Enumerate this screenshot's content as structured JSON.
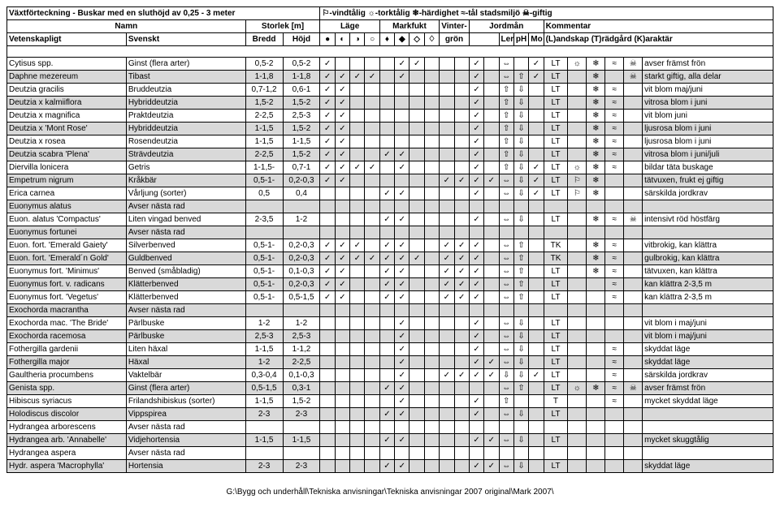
{
  "title_left": "Växtförteckning - Buskar med en sluthöjd av 0,25 - 3 meter",
  "legend": "⚐-vindtålig ☼-torktålig ❄-härdighet ≈-tål stadsmiljö ☠-giftig",
  "hdr2": {
    "namn": "Namn",
    "storlek": "Storlek [m]",
    "lage": "Läge",
    "markfukt": "Markfukt",
    "vinter": "Vinter-",
    "jordman": "Jordmån",
    "kommentar": "Kommentar"
  },
  "hdr3": {
    "sci": "Vetenskapligt",
    "sv": "Svenskt",
    "bredd": "Bredd",
    "hojd": "Höjd",
    "gron": "grön",
    "ler": "Ler",
    "ph": "pH",
    "mo": "Mo",
    "rest": "(L)andskap  (T)rädgård  (K)araktär"
  },
  "lage_icons": [
    "●",
    "◐",
    "◑",
    "○"
  ],
  "mark_icons": [
    "♦",
    "◆",
    "◇",
    "♢"
  ],
  "check": "✓",
  "up": "⇧",
  "down": "⇩",
  "lr": "⇔",
  "sun": "☼",
  "snow": "❄",
  "wave": "≈",
  "skull": "☠",
  "flag": "⚐",
  "rows": [
    {
      "sci": "Cytisus spp.",
      "sv": "Ginst (flera arter)",
      "b": "0,5-2",
      "h": "0,5-2",
      "lage": [
        1,
        0,
        0,
        0
      ],
      "mark": [
        0,
        1,
        1,
        0
      ],
      "vint": [
        0,
        0
      ],
      "jord": [
        1,
        0
      ],
      "ler": "⇔",
      "ph": "",
      "mo": "✓",
      "lt": "LT",
      "icons": [
        "☼",
        "❄",
        "≈",
        "☠"
      ],
      "txt": "avser främst frön"
    },
    {
      "sci": "Daphne mezereum",
      "sv": "Tibast",
      "b": "1-1,8",
      "h": "1-1,8",
      "lage": [
        1,
        1,
        1,
        1
      ],
      "mark": [
        0,
        1,
        0,
        0
      ],
      "vint": [
        0,
        0
      ],
      "jord": [
        1,
        0
      ],
      "ler": "⇔",
      "ph": "⇧",
      "mo": "✓",
      "lt": "LT",
      "icons": [
        "",
        "❄",
        "",
        "☠"
      ],
      "txt": "starkt giftig, alla delar",
      "gray": true
    },
    {
      "sci": "Deutzia gracilis",
      "sv": "Bruddeutzia",
      "b": "0,7-1,2",
      "h": "0,6-1",
      "lage": [
        1,
        1,
        0,
        0
      ],
      "mark": [
        0,
        0,
        0,
        0
      ],
      "vint": [
        0,
        0
      ],
      "jord": [
        1,
        0
      ],
      "ler": "⇧",
      "ph": "⇩",
      "mo": "",
      "lt": "LT",
      "icons": [
        "",
        "❄",
        "≈",
        ""
      ],
      "txt": "vit blom maj/juni"
    },
    {
      "sci": "Deutzia x kalmiiflora",
      "sv": "Hybriddeutzia",
      "b": "1,5-2",
      "h": "1,5-2",
      "lage": [
        1,
        1,
        0,
        0
      ],
      "mark": [
        0,
        0,
        0,
        0
      ],
      "vint": [
        0,
        0
      ],
      "jord": [
        1,
        0
      ],
      "ler": "⇧",
      "ph": "⇩",
      "mo": "",
      "lt": "LT",
      "icons": [
        "",
        "❄",
        "≈",
        ""
      ],
      "txt": "vitrosa blom i juni",
      "gray": true
    },
    {
      "sci": "Deutzia x magnifica",
      "sv": "Praktdeutzia",
      "b": "2-2,5",
      "h": "2,5-3",
      "lage": [
        1,
        1,
        0,
        0
      ],
      "mark": [
        0,
        0,
        0,
        0
      ],
      "vint": [
        0,
        0
      ],
      "jord": [
        1,
        0
      ],
      "ler": "⇧",
      "ph": "⇩",
      "mo": "",
      "lt": "LT",
      "icons": [
        "",
        "❄",
        "≈",
        ""
      ],
      "txt": "vit blom juni"
    },
    {
      "sci": "Deutzia x 'Mont Rose'",
      "sv": "Hybriddeutzia",
      "b": "1-1,5",
      "h": "1,5-2",
      "lage": [
        1,
        1,
        0,
        0
      ],
      "mark": [
        0,
        0,
        0,
        0
      ],
      "vint": [
        0,
        0
      ],
      "jord": [
        1,
        0
      ],
      "ler": "⇧",
      "ph": "⇩",
      "mo": "",
      "lt": "LT",
      "icons": [
        "",
        "❄",
        "≈",
        ""
      ],
      "txt": "ljusrosa blom i juni",
      "gray": true
    },
    {
      "sci": "Deutzia x rosea",
      "sv": "Rosendeutzia",
      "b": "1-1,5",
      "h": "1-1,5",
      "lage": [
        1,
        1,
        0,
        0
      ],
      "mark": [
        0,
        0,
        0,
        0
      ],
      "vint": [
        0,
        0
      ],
      "jord": [
        1,
        0
      ],
      "ler": "⇧",
      "ph": "⇩",
      "mo": "",
      "lt": "LT",
      "icons": [
        "",
        "❄",
        "≈",
        ""
      ],
      "txt": "ljusrosa blom i juni"
    },
    {
      "sci": "Deutzia scabra 'Plena'",
      "sv": "Strävdeutzia",
      "b": "2-2,5",
      "h": "1,5-2",
      "lage": [
        1,
        1,
        0,
        0
      ],
      "mark": [
        1,
        1,
        0,
        0
      ],
      "vint": [
        0,
        0
      ],
      "jord": [
        1,
        0
      ],
      "ler": "⇧",
      "ph": "⇩",
      "mo": "",
      "lt": "LT",
      "icons": [
        "",
        "❄",
        "≈",
        ""
      ],
      "txt": "vitrosa blom i juni/juli",
      "gray": true
    },
    {
      "sci": "Diervilla lonicera",
      "sv": "Getris",
      "b": "1-1,5-",
      "h": "0,7-1",
      "lage": [
        1,
        1,
        1,
        1
      ],
      "mark": [
        0,
        1,
        0,
        0
      ],
      "vint": [
        0,
        0
      ],
      "jord": [
        1,
        0
      ],
      "ler": "⇧",
      "ph": "⇩",
      "mo": "✓",
      "lt": "LT",
      "icons": [
        "☼",
        "❄",
        "≈",
        ""
      ],
      "txt": "bildar täta buskage"
    },
    {
      "sci": "Empetrum nigrum",
      "sv": "Kråkbär",
      "b": "0,5-1-",
      "h": "0,2-0,3",
      "lage": [
        1,
        1,
        0,
        0
      ],
      "mark": [
        0,
        0,
        0,
        0
      ],
      "vint": [
        1,
        1
      ],
      "jord": [
        1,
        1
      ],
      "ler": "⇔",
      "ph": "⇩",
      "mo": "✓",
      "lt": "LT",
      "icons": [
        "⚐",
        "❄",
        "",
        ""
      ],
      "txt": "tätvuxen, frukt ej giftig",
      "gray": true
    },
    {
      "sci": "Erica carnea",
      "sv": "Vårljung (sorter)",
      "b": "0,5",
      "h": "0,4",
      "lage": [
        0,
        0,
        0,
        0
      ],
      "mark": [
        1,
        1,
        0,
        0
      ],
      "vint": [
        0,
        0
      ],
      "jord": [
        1,
        0
      ],
      "ler": "⇔",
      "ph": "⇩",
      "mo": "✓",
      "lt": "LT",
      "icons": [
        "⚐",
        "❄",
        "",
        ""
      ],
      "txt": "särskilda jordkrav"
    },
    {
      "sci": "Euonymus alatus",
      "sv": "Avser nästa rad",
      "b": "",
      "h": "",
      "lage": [
        0,
        0,
        0,
        0
      ],
      "mark": [
        0,
        0,
        0,
        0
      ],
      "vint": [
        0,
        0
      ],
      "jord": [
        0,
        0
      ],
      "ler": "",
      "ph": "",
      "mo": "",
      "lt": "",
      "icons": [
        "",
        "",
        "",
        ""
      ],
      "txt": "",
      "gray": true
    },
    {
      "sci": "Euon. alatus 'Compactus'",
      "sv": "Liten vingad benved",
      "b": "2-3,5",
      "h": "1-2",
      "lage": [
        0,
        0,
        0,
        0
      ],
      "mark": [
        1,
        1,
        0,
        0
      ],
      "vint": [
        0,
        0
      ],
      "jord": [
        1,
        0
      ],
      "ler": "⇔",
      "ph": "⇩",
      "mo": "",
      "lt": "LT",
      "icons": [
        "",
        "❄",
        "≈",
        "☠"
      ],
      "txt": "intensivt röd höstfärg"
    },
    {
      "sci": "Euonymus fortunei",
      "sv": "Avser nästa rad",
      "b": "",
      "h": "",
      "lage": [
        0,
        0,
        0,
        0
      ],
      "mark": [
        0,
        0,
        0,
        0
      ],
      "vint": [
        0,
        0
      ],
      "jord": [
        0,
        0
      ],
      "ler": "",
      "ph": "",
      "mo": "",
      "lt": "",
      "icons": [
        "",
        "",
        "",
        ""
      ],
      "txt": "",
      "gray": true
    },
    {
      "sci": "Euon. fort. 'Emerald Gaiety'",
      "sv": "Silverbenved",
      "b": "0,5-1-",
      "h": "0,2-0,3",
      "lage": [
        1,
        1,
        1,
        0
      ],
      "mark": [
        1,
        1,
        0,
        0
      ],
      "vint": [
        1,
        1
      ],
      "jord": [
        1,
        0
      ],
      "ler": "⇔",
      "ph": "⇧",
      "mo": "",
      "lt": "TK",
      "icons": [
        "",
        "❄",
        "≈",
        ""
      ],
      "txt": "vitbrokig, kan klättra"
    },
    {
      "sci": "Euon. fort. 'Emerald´n Gold'",
      "sv": "Guldbenved",
      "b": "0,5-1-",
      "h": "0,2-0,3",
      "lage": [
        1,
        1,
        1,
        1
      ],
      "mark": [
        1,
        1,
        1,
        0
      ],
      "vint": [
        1,
        1
      ],
      "jord": [
        1,
        0
      ],
      "ler": "⇔",
      "ph": "⇧",
      "mo": "",
      "lt": "TK",
      "icons": [
        "",
        "❄",
        "≈",
        ""
      ],
      "txt": "gulbrokig, kan klättra",
      "gray": true
    },
    {
      "sci": "Euonymus fort. 'Minimus'",
      "sv": "Benved (småbladig)",
      "b": "0,5-1-",
      "h": "0,1-0,3",
      "lage": [
        1,
        1,
        0,
        0
      ],
      "mark": [
        1,
        1,
        0,
        0
      ],
      "vint": [
        1,
        1
      ],
      "jord": [
        1,
        0
      ],
      "ler": "⇔",
      "ph": "⇧",
      "mo": "",
      "lt": "LT",
      "icons": [
        "",
        "❄",
        "≈",
        ""
      ],
      "txt": "tätvuxen, kan klättra"
    },
    {
      "sci": "Euonymus fort. v. radicans",
      "sv": "Klätterbenved",
      "b": "0,5-1-",
      "h": "0,2-0,3",
      "lage": [
        1,
        1,
        0,
        0
      ],
      "mark": [
        1,
        1,
        0,
        0
      ],
      "vint": [
        1,
        1
      ],
      "jord": [
        1,
        0
      ],
      "ler": "⇔",
      "ph": "⇧",
      "mo": "",
      "lt": "LT",
      "icons": [
        "",
        "",
        "≈",
        ""
      ],
      "txt": "kan klättra 2-3,5 m",
      "gray": true
    },
    {
      "sci": "Euonymus fort. 'Vegetus'",
      "sv": "Klätterbenved",
      "b": "0,5-1-",
      "h": "0,5-1,5",
      "lage": [
        1,
        1,
        0,
        0
      ],
      "mark": [
        1,
        1,
        0,
        0
      ],
      "vint": [
        1,
        1
      ],
      "jord": [
        1,
        0
      ],
      "ler": "⇔",
      "ph": "⇧",
      "mo": "",
      "lt": "LT",
      "icons": [
        "",
        "",
        "≈",
        ""
      ],
      "txt": "kan klättra 2-3,5 m"
    },
    {
      "sci": "Exochorda macrantha",
      "sv": "Avser nästa rad",
      "b": "",
      "h": "",
      "lage": [
        0,
        0,
        0,
        0
      ],
      "mark": [
        0,
        0,
        0,
        0
      ],
      "vint": [
        0,
        0
      ],
      "jord": [
        0,
        0
      ],
      "ler": "",
      "ph": "",
      "mo": "",
      "lt": "",
      "icons": [
        "",
        "",
        "",
        ""
      ],
      "txt": "",
      "gray": true
    },
    {
      "sci": "Exochorda mac. 'The Bride'",
      "sv": "Pärlbuske",
      "b": "1-2",
      "h": "1-2",
      "lage": [
        0,
        0,
        0,
        0
      ],
      "mark": [
        0,
        1,
        0,
        0
      ],
      "vint": [
        0,
        0
      ],
      "jord": [
        1,
        0
      ],
      "ler": "⇔",
      "ph": "⇩",
      "mo": "",
      "lt": "LT",
      "icons": [
        "",
        "",
        "",
        ""
      ],
      "txt": "vit blom i maj/juni"
    },
    {
      "sci": "Exochorda racemosa",
      "sv": "Pärlbuske",
      "b": "2,5-3",
      "h": "2,5-3",
      "lage": [
        0,
        0,
        0,
        0
      ],
      "mark": [
        0,
        1,
        0,
        0
      ],
      "vint": [
        0,
        0
      ],
      "jord": [
        1,
        0
      ],
      "ler": "⇔",
      "ph": "⇩",
      "mo": "",
      "lt": "LT",
      "icons": [
        "",
        "",
        "",
        ""
      ],
      "txt": "vit blom i maj/juni",
      "gray": true
    },
    {
      "sci": "Fothergilla gardenii",
      "sv": "Liten häxal",
      "b": "1-1,5",
      "h": "1-1,2",
      "lage": [
        0,
        0,
        0,
        0
      ],
      "mark": [
        0,
        1,
        0,
        0
      ],
      "vint": [
        0,
        0
      ],
      "jord": [
        1,
        0
      ],
      "ler": "⇔",
      "ph": "⇩",
      "mo": "",
      "lt": "LT",
      "icons": [
        "",
        "",
        "≈",
        ""
      ],
      "txt": "skyddat läge"
    },
    {
      "sci": "Fothergilla major",
      "sv": "Häxal",
      "b": "1-2",
      "h": "2-2,5",
      "lage": [
        0,
        0,
        0,
        0
      ],
      "mark": [
        0,
        1,
        0,
        0
      ],
      "vint": [
        0,
        0
      ],
      "jord": [
        1,
        1
      ],
      "ler": "⇔",
      "ph": "⇩",
      "mo": "",
      "lt": "LT",
      "icons": [
        "",
        "",
        "≈",
        ""
      ],
      "txt": "skyddat läge",
      "gray": true
    },
    {
      "sci": "Gaultheria procumbens",
      "sv": "Vaktelbär",
      "b": "0,3-0,4",
      "h": "0,1-0,3",
      "lage": [
        0,
        0,
        0,
        0
      ],
      "mark": [
        0,
        1,
        0,
        0
      ],
      "vint": [
        1,
        1
      ],
      "jord": [
        1,
        1
      ],
      "ler": "⇩",
      "ph": "⇩",
      "mo": "✓",
      "lt": "LT",
      "icons": [
        "",
        "",
        "≈",
        ""
      ],
      "txt": "särskilda jordkrav"
    },
    {
      "sci": "Genista spp.",
      "sv": "Ginst (flera arter)",
      "b": "0,5-1,5",
      "h": "0,3-1",
      "lage": [
        0,
        0,
        0,
        0
      ],
      "mark": [
        1,
        1,
        0,
        0
      ],
      "vint": [
        0,
        0
      ],
      "jord": [
        0,
        0
      ],
      "ler": "⇔",
      "ph": "⇧",
      "mo": "",
      "lt": "LT",
      "icons": [
        "☼",
        "❄",
        "≈",
        "☠"
      ],
      "txt": "avser främst frön",
      "gray": true
    },
    {
      "sci": "Hibiscus syriacus",
      "sv": "Frilandshibiskus (sorter)",
      "b": "1-1,5",
      "h": "1,5-2",
      "lage": [
        0,
        0,
        0,
        0
      ],
      "mark": [
        0,
        1,
        0,
        0
      ],
      "vint": [
        0,
        0
      ],
      "jord": [
        1,
        0
      ],
      "ler": "⇧",
      "ph": "",
      "mo": "",
      "lt": "T",
      "icons": [
        "",
        "",
        "≈",
        ""
      ],
      "txt": "mycket skyddat läge"
    },
    {
      "sci": "Holodiscus discolor",
      "sv": "Vippspirea",
      "b": "2-3",
      "h": "2-3",
      "lage": [
        0,
        0,
        0,
        0
      ],
      "mark": [
        1,
        1,
        0,
        0
      ],
      "vint": [
        0,
        0
      ],
      "jord": [
        1,
        0
      ],
      "ler": "⇔",
      "ph": "⇩",
      "mo": "",
      "lt": "LT",
      "icons": [
        "",
        "",
        "",
        ""
      ],
      "txt": "",
      "gray": true
    },
    {
      "sci": "Hydrangea arborescens",
      "sv": "Avser nästa rad",
      "b": "",
      "h": "",
      "lage": [
        0,
        0,
        0,
        0
      ],
      "mark": [
        0,
        0,
        0,
        0
      ],
      "vint": [
        0,
        0
      ],
      "jord": [
        0,
        0
      ],
      "ler": "",
      "ph": "",
      "mo": "",
      "lt": "",
      "icons": [
        "",
        "",
        "",
        ""
      ],
      "txt": ""
    },
    {
      "sci": "Hydrangea arb. 'Annabelle'",
      "sv": "Vidjehortensia",
      "b": "1-1,5",
      "h": "1-1,5",
      "lage": [
        0,
        0,
        0,
        0
      ],
      "mark": [
        1,
        1,
        0,
        0
      ],
      "vint": [
        0,
        0
      ],
      "jord": [
        1,
        1
      ],
      "ler": "⇔",
      "ph": "⇩",
      "mo": "",
      "lt": "LT",
      "icons": [
        "",
        "",
        "",
        ""
      ],
      "txt": "mycket skuggtålig",
      "gray": true
    },
    {
      "sci": "Hydrangea aspera",
      "sv": "Avser nästa rad",
      "b": "",
      "h": "",
      "lage": [
        0,
        0,
        0,
        0
      ],
      "mark": [
        0,
        0,
        0,
        0
      ],
      "vint": [
        0,
        0
      ],
      "jord": [
        0,
        0
      ],
      "ler": "",
      "ph": "",
      "mo": "",
      "lt": "",
      "icons": [
        "",
        "",
        "",
        ""
      ],
      "txt": ""
    },
    {
      "sci": "Hydr. aspera 'Macrophylla'",
      "sv": "Hortensia",
      "b": "2-3",
      "h": "2-3",
      "lage": [
        0,
        0,
        0,
        0
      ],
      "mark": [
        1,
        1,
        0,
        0
      ],
      "vint": [
        0,
        0
      ],
      "jord": [
        1,
        1
      ],
      "ler": "⇔",
      "ph": "⇩",
      "mo": "",
      "lt": "LT",
      "icons": [
        "",
        "",
        "",
        ""
      ],
      "txt": "skyddat läge",
      "gray": true
    }
  ],
  "footer": "G:\\Bygg och underhåll\\Tekniska anvisningar\\Tekniska anvisningar 2007 original\\Mark 2007\\"
}
